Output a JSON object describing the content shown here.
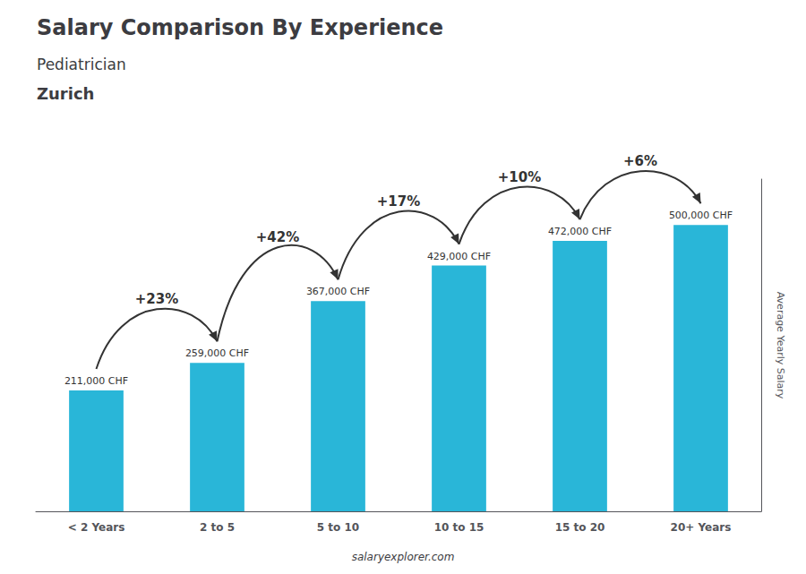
{
  "chart_data": {
    "type": "bar",
    "title": "Salary Comparison By Experience",
    "subtitle": "Pediatrician",
    "location": "Zurich",
    "ylabel": "Average Yearly Salary",
    "footer": "salaryexplorer.com",
    "categories": [
      "< 2 Years",
      "2 to 5",
      "5 to 10",
      "10 to 15",
      "15 to 20",
      "20+ Years"
    ],
    "values": [
      211000,
      259000,
      367000,
      429000,
      472000,
      500000
    ],
    "value_labels": [
      "211,000 CHF",
      "259,000 CHF",
      "367,000 CHF",
      "429,000 CHF",
      "472,000 CHF",
      "500,000 CHF"
    ],
    "data_labels": true,
    "annotations": [
      {
        "text": "+23%",
        "from": "< 2 Years",
        "to": "2 to 5"
      },
      {
        "text": "+42%",
        "from": "2 to 5",
        "to": "5 to 10"
      },
      {
        "text": "+17%",
        "from": "5 to 10",
        "to": "10 to 15"
      },
      {
        "text": "+10%",
        "from": "10 to 15",
        "to": "15 to 20"
      },
      {
        "text": "+6%",
        "from": "15 to 20",
        "to": "20+ Years"
      }
    ],
    "color": "#29b6d8",
    "ylim": [
      0,
      580000
    ],
    "grid": false,
    "tick_labels": "x"
  }
}
